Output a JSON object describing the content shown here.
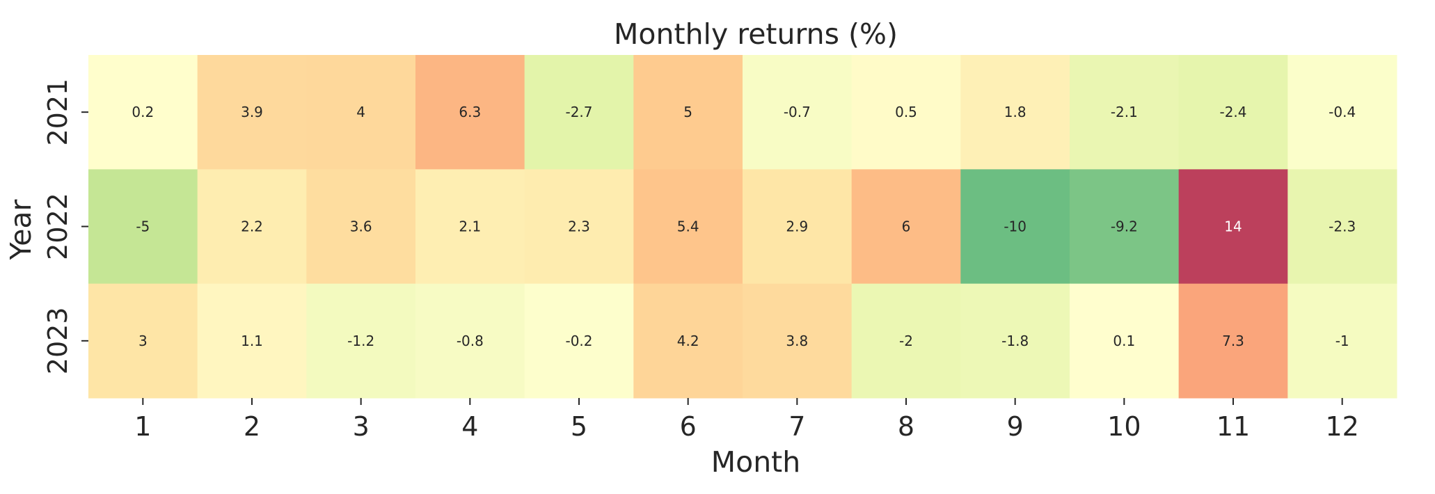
{
  "chart_data": {
    "type": "heatmap",
    "title": "Monthly returns (%)",
    "xlabel": "Month",
    "ylabel": "Year",
    "x_categories": [
      "1",
      "2",
      "3",
      "4",
      "5",
      "6",
      "7",
      "8",
      "9",
      "10",
      "11",
      "12"
    ],
    "y_categories": [
      "2021",
      "2022",
      "2023"
    ],
    "values": [
      [
        0.2,
        3.9,
        4,
        6.3,
        -2.7,
        5,
        -0.7,
        0.5,
        1.8,
        -2.1,
        -2.4,
        -0.4
      ],
      [
        -5,
        2.2,
        3.6,
        2.1,
        2.3,
        5.4,
        2.9,
        6,
        -10,
        -9.2,
        14,
        -2.3
      ],
      [
        3,
        1.1,
        -1.2,
        -0.8,
        -0.2,
        4.2,
        3.8,
        -2,
        -1.8,
        0.1,
        7.3,
        -1
      ]
    ],
    "colormap": "RdYlGn_r",
    "color_range": [
      -14,
      14
    ],
    "colorbar": false,
    "grid": false
  }
}
